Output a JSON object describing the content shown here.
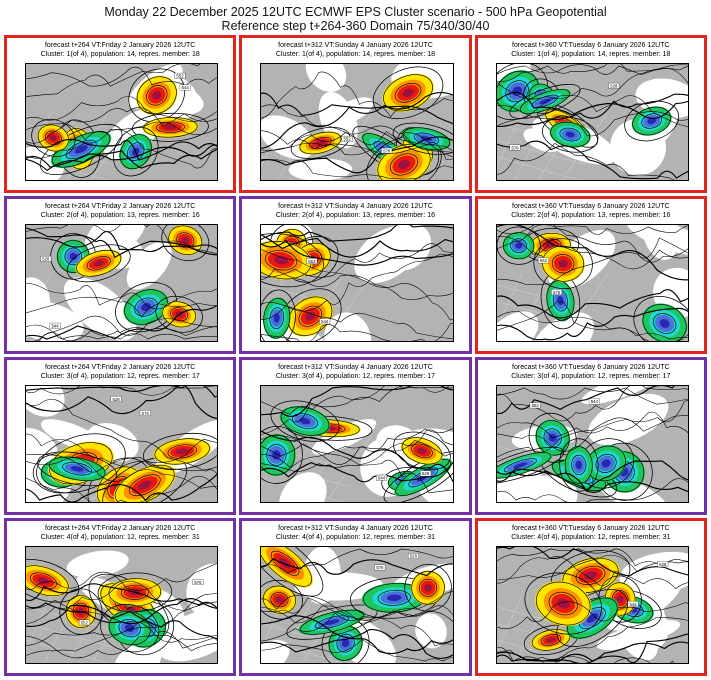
{
  "title": {
    "line1": "Monday 22 December 2025 12UTC ECMWF EPS Cluster scenario - 500 hPa Geopotential",
    "line2": "Reference step t+264-360 Domain 75/340/30/40"
  },
  "colors": {
    "red_border": "#e3241f",
    "purple_border": "#7130a5",
    "map_base_gray": "#b3b3b3",
    "land_white": "#ffffff",
    "contour": "#000000",
    "graticule": "#c9c9c9",
    "anomaly_warm": [
      "#ffe400",
      "#ff9000",
      "#e91910",
      "#9c1243"
    ],
    "anomaly_cold": [
      "#1fc65e",
      "#21d7d0",
      "#4c6fdd",
      "#2329b2"
    ]
  },
  "map_decoration": {
    "contour_labels": [
      "544",
      "552",
      "576",
      "528"
    ]
  },
  "panels": [
    {
      "line1": "forecast t+264 VT:Friday 2 January 2026 12UTC",
      "line2": "Cluster: 1(of 4), population: 14, repres. member: 18",
      "border": "red_border"
    },
    {
      "line1": "forecast t+312 VT:Sunday 4 January 2026 12UTC",
      "line2": "Cluster: 1(of 4), population: 14, repres. member: 18",
      "border": "red_border"
    },
    {
      "line1": "forecast t+360 VT:Tuesday 6 January 2026 12UTC",
      "line2": "Cluster: 1(of 4), population: 14, repres. member: 18",
      "border": "red_border"
    },
    {
      "line1": "forecast t+264 VT:Friday 2 January 2026 12UTC",
      "line2": "Cluster: 2(of 4), population: 13, repres. member: 16",
      "border": "purple_border"
    },
    {
      "line1": "forecast t+312 VT:Sunday 4 January 2026 12UTC",
      "line2": "Cluster: 2(of 4), population: 13, repres. member: 16",
      "border": "purple_border"
    },
    {
      "line1": "forecast t+360 VT:Tuesday 6 January 2026 12UTC",
      "line2": "Cluster: 2(of 4), population: 13, repres. member: 16",
      "border": "red_border"
    },
    {
      "line1": "forecast t+264 VT:Friday 2 January 2026 12UTC",
      "line2": "Cluster: 3(of 4), population: 12, repres. member: 17",
      "border": "purple_border"
    },
    {
      "line1": "forecast t+312 VT:Sunday 4 January 2026 12UTC",
      "line2": "Cluster: 3(of 4), population: 12, repres. member: 17",
      "border": "purple_border"
    },
    {
      "line1": "forecast t+360 VT:Tuesday 6 January 2026 12UTC",
      "line2": "Cluster: 3(of 4), population: 12, repres. member: 17",
      "border": "purple_border"
    },
    {
      "line1": "forecast t+264 VT:Friday 2 January 2026 12UTC",
      "line2": "Cluster: 4(of 4), population: 12, repres. member: 31",
      "border": "purple_border"
    },
    {
      "line1": "forecast t+312 VT:Sunday 4 January 2026 12UTC",
      "line2": "Cluster: 4(of 4), population: 12, repres. member: 31",
      "border": "purple_border"
    },
    {
      "line1": "forecast t+360 VT:Tuesday 6 January 2026 12UTC",
      "line2": "Cluster: 4(of 4), population: 12, repres. member: 31",
      "border": "red_border"
    }
  ]
}
